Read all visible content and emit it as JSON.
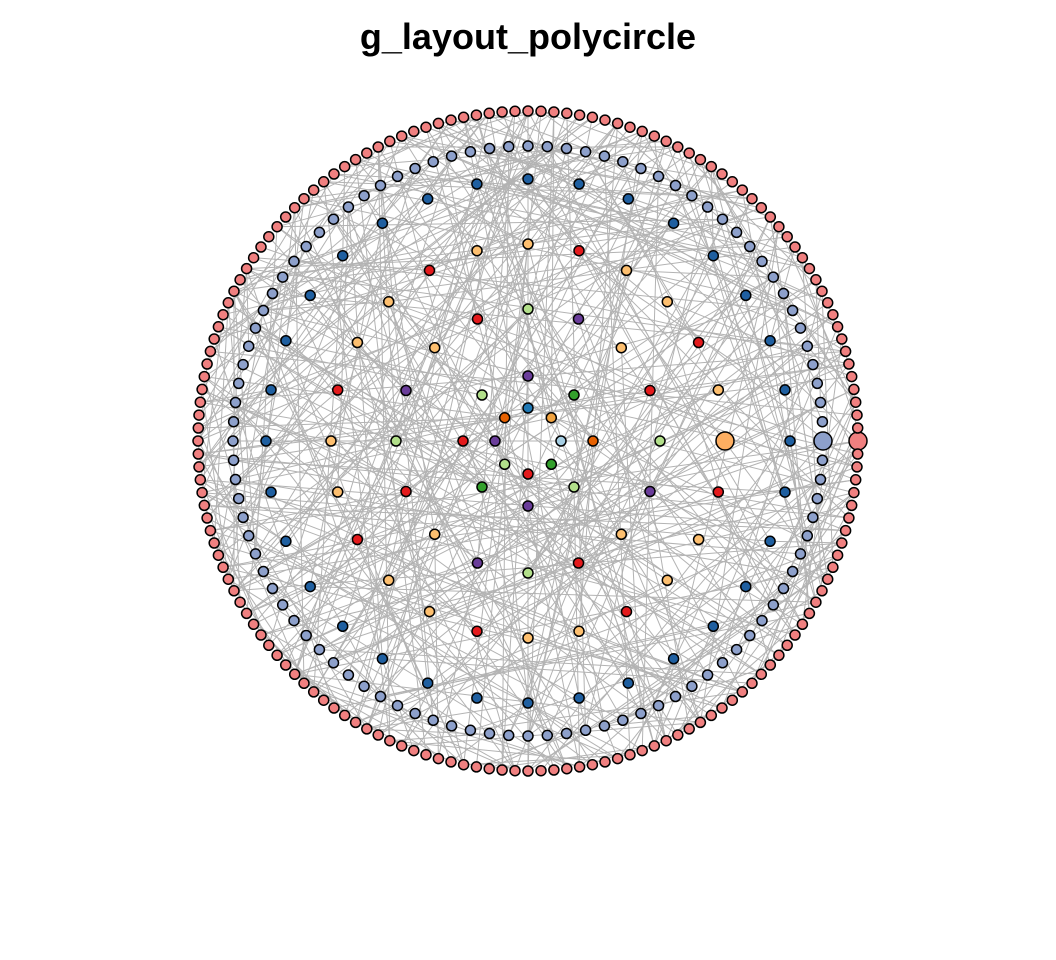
{
  "title": "g_layout_polycircle",
  "edge_color": "#b3b3b3",
  "node_stroke": "#000000",
  "rings": [
    {
      "name": "ring-1",
      "count": 8,
      "color_cycle": [
        "#a6cee3",
        "#f1a340",
        "#1f78b4",
        "#e66101",
        "#6a3d9a",
        "#b2df8a",
        "#e31a1c",
        "#33a02c"
      ]
    },
    {
      "name": "ring-2",
      "count": 8,
      "color_cycle": [
        "#e66101",
        "#33a02c",
        "#6a3d9a",
        "#b2df8a",
        "#e31a1c",
        "#33a02c",
        "#6a3d9a",
        "#b2df8a"
      ]
    },
    {
      "name": "ring-3",
      "count": 16,
      "color_cycle": [
        "#b2df8a",
        "#e31a1c",
        "#fdbf6f",
        "#6a3d9a"
      ]
    },
    {
      "name": "ring-4",
      "count": 24,
      "color_cycle": [
        "#fdbf6f",
        "#fdbf6f",
        "#e31a1c"
      ]
    },
    {
      "name": "ring-5",
      "count": 32,
      "color_cycle": [
        "#1f5fa0"
      ]
    },
    {
      "name": "ring-6",
      "count": 96,
      "color_cycle": [
        "#8da0cb"
      ]
    },
    {
      "name": "ring-7",
      "count": 160,
      "color_cycle": [
        "#f08080"
      ]
    }
  ],
  "highlight_nodes": [
    {
      "ring": "ring-4",
      "color": "#fdae61"
    },
    {
      "ring": "ring-6",
      "color": "#8da0cb"
    },
    {
      "ring": "ring-7",
      "color": "#f08080"
    }
  ]
}
